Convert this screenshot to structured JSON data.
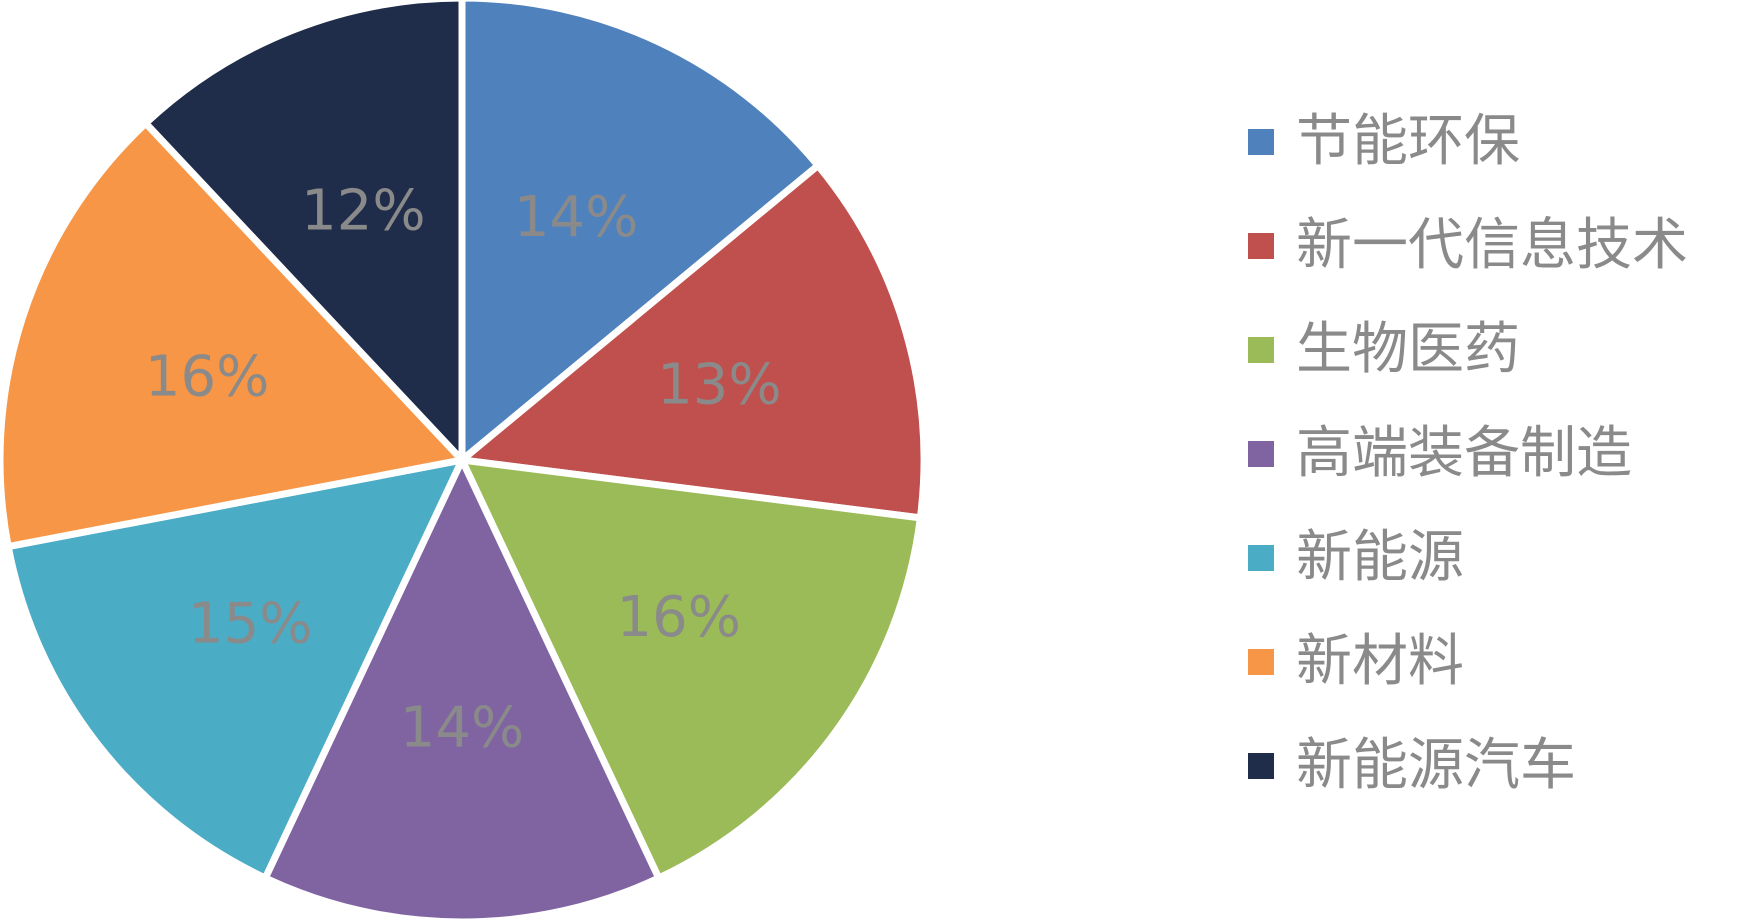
{
  "chart_data": {
    "type": "pie",
    "categories": [
      "节能环保",
      "新一代信息技术",
      "生物医药",
      "高端装备制造",
      "新能源",
      "新材料",
      "新能源汽车"
    ],
    "values": [
      14,
      13,
      16,
      14,
      15,
      16,
      12
    ],
    "labels": [
      "14%",
      "13%",
      "16%",
      "14%",
      "15%",
      "16%",
      "12%"
    ],
    "colors": [
      "#4f81bd",
      "#c0504d",
      "#9bbb59",
      "#8064a2",
      "#4bacc6",
      "#f79646",
      "#1f2d4a"
    ],
    "legend_position": "right",
    "label_position": "inside",
    "start_angle": "12 o'clock",
    "direction": "clockwise"
  }
}
